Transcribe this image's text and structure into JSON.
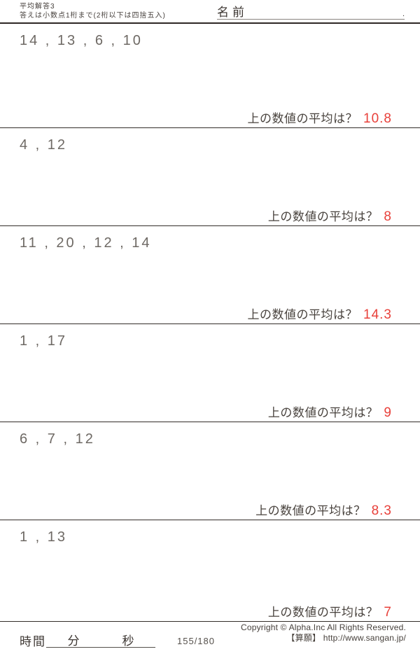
{
  "colors": {
    "answer_red": "#e8403a",
    "ink": "#403a36"
  },
  "header": {
    "title": "平均解答3",
    "subtitle": "答えは小数点1桁まで(2桁以下は四捨五入)",
    "name_label": "名前",
    "name_dot": "."
  },
  "answer_prompt": "上の数値の平均は？",
  "problems": [
    {
      "numbers": "14 , 13 , 6 , 10",
      "answer": "10.8"
    },
    {
      "numbers": "4 , 12",
      "answer": "8"
    },
    {
      "numbers": "11 , 20 , 12 , 14",
      "answer": "14.3"
    },
    {
      "numbers": "1 , 17",
      "answer": "9"
    },
    {
      "numbers": "6 , 7 , 12",
      "answer": "8.3"
    },
    {
      "numbers": "1 , 13",
      "answer": "7"
    }
  ],
  "footer": {
    "time_label": "時間",
    "minutes_label": "分",
    "seconds_label": "秒",
    "page_number": "155/180",
    "copyright_line1": "Copyright ©  Alpha.Inc All Rights Reserved.",
    "copyright_line2": "【算願】 http://www.sangan.jp/"
  }
}
